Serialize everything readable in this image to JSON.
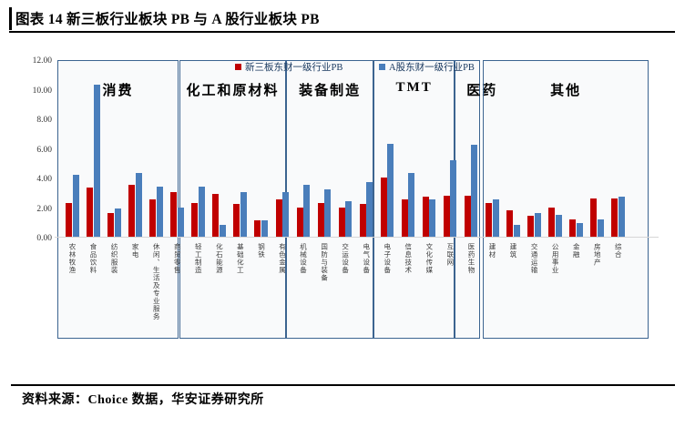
{
  "header": {
    "figure_label": "图表 14 新三板行业板块 PB 与 A 股行业板块 PB"
  },
  "footer": {
    "source": "资料来源：Choice 数据，华安证券研究所"
  },
  "colors": {
    "series_red": "#c00000",
    "series_blue": "#4a7ebb",
    "box_border": "#3c6490"
  },
  "chart_data": {
    "type": "bar",
    "title": "图表 14 新三板行业板块 PB 与 A 股行业板块 PB",
    "xlabel": "",
    "ylabel": "",
    "ylim": [
      0,
      12
    ],
    "yticks": [
      "12.00",
      "10.00",
      "8.00",
      "6.00",
      "4.00",
      "2.00",
      "0.00"
    ],
    "grid": false,
    "legend_position": "top",
    "series": [
      {
        "name": "新三板东财一级行业PB",
        "color": "#c00000"
      },
      {
        "name": "A股东财一级行业PB",
        "color": "#4a7ebb"
      }
    ],
    "groups": [
      {
        "label": "消费",
        "categories": [
          "农林牧渔",
          "食品饮料",
          "纺织服装",
          "家电",
          "休闲、生活及专业服务",
          "商贸零售"
        ],
        "values_xinsanban": [
          2.3,
          3.3,
          1.6,
          3.5,
          2.5,
          3.0
        ],
        "values_agu": [
          4.2,
          10.3,
          1.9,
          4.3,
          3.4,
          2.0
        ]
      },
      {
        "label": "化工和原材料",
        "categories": [
          "轻工制造",
          "化石能源",
          "基础化工",
          "钢铁",
          "有色金属"
        ],
        "values_xinsanban": [
          2.3,
          2.9,
          2.2,
          1.1,
          2.5
        ],
        "values_agu": [
          3.4,
          0.8,
          3.0,
          1.1,
          3.0
        ]
      },
      {
        "label": "装备制造",
        "categories": [
          "机械设备",
          "国防与装备",
          "交运设备",
          "电气设备"
        ],
        "values_xinsanban": [
          2.0,
          2.3,
          2.0,
          2.2
        ],
        "values_agu": [
          3.5,
          3.2,
          2.4,
          3.7
        ]
      },
      {
        "label": "TMT",
        "categories": [
          "电子设备",
          "信息技术",
          "文化传媒",
          "互联网"
        ],
        "values_xinsanban": [
          4.0,
          2.5,
          2.7,
          2.8
        ],
        "values_agu": [
          6.3,
          4.3,
          2.5,
          5.2
        ]
      },
      {
        "label": "医药",
        "categories": [
          "医药生物"
        ],
        "values_xinsanban": [
          2.8
        ],
        "values_agu": [
          6.2
        ]
      },
      {
        "label": "其他",
        "categories": [
          "建材",
          "建筑",
          "交通运输",
          "公用事业",
          "金融",
          "房地产",
          "综合"
        ],
        "values_xinsanban": [
          2.3,
          1.8,
          1.4,
          2.0,
          1.2,
          2.6,
          2.6
        ],
        "values_agu": [
          2.5,
          0.8,
          1.6,
          1.5,
          0.9,
          1.2,
          2.7
        ]
      }
    ]
  }
}
